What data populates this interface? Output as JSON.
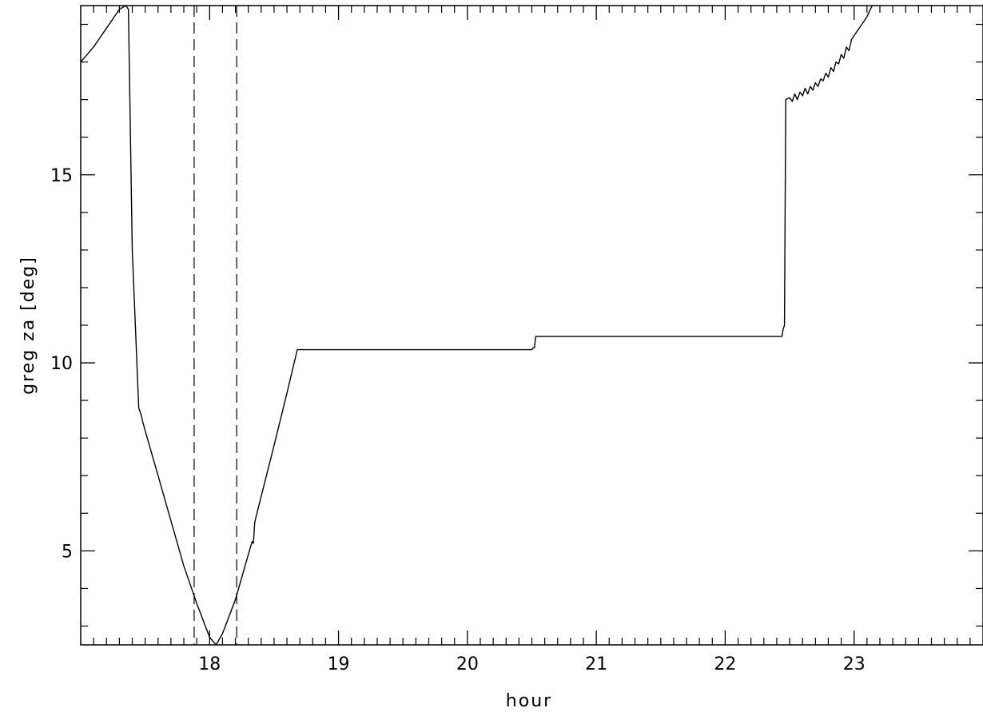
{
  "chart_data": {
    "type": "line",
    "title": "",
    "xlabel": "hour",
    "ylabel": "greg za [deg]",
    "xlim": [
      17.0,
      24.0
    ],
    "ylim": [
      2.5,
      19.5
    ],
    "grid": false,
    "x_major_ticks": [
      18,
      19,
      20,
      21,
      22,
      23
    ],
    "x_tick_labels": [
      "18",
      "19",
      "20",
      "21",
      "22",
      "23"
    ],
    "x_minor_step": 0.1,
    "y_major_ticks": [
      5,
      10,
      15
    ],
    "y_tick_labels": [
      "5",
      "10",
      "15"
    ],
    "y_minor_step": 1,
    "vertical_markers": [
      17.88,
      18.21
    ],
    "series": [
      {
        "x": [
          17.0,
          17.05,
          17.1,
          17.15,
          17.2,
          17.25,
          17.3,
          17.35,
          17.37,
          17.4,
          17.45,
          17.47,
          17.48,
          17.5,
          17.6,
          17.7,
          17.8,
          17.9,
          18.0,
          18.05,
          18.1,
          18.2,
          18.3,
          18.33,
          18.34,
          18.35,
          18.36,
          18.5,
          18.6,
          18.68,
          19.0,
          20.0,
          20.5,
          20.51,
          20.52,
          20.53,
          21.0,
          22.0,
          22.44,
          22.45,
          22.46,
          22.47,
          22.5,
          22.52,
          22.54,
          22.56,
          22.58,
          22.6,
          22.62,
          22.64,
          22.66,
          22.68,
          22.7,
          22.72,
          22.74,
          22.76,
          22.78,
          22.8,
          22.82,
          22.84,
          22.86,
          22.88,
          22.9,
          22.92,
          22.94,
          22.96,
          22.98,
          23.0,
          23.1,
          23.14
        ],
        "y": [
          18.0,
          18.2,
          18.4,
          18.65,
          18.9,
          19.15,
          19.4,
          19.7,
          19.4,
          13.0,
          8.8,
          8.6,
          8.45,
          8.2,
          7.0,
          5.8,
          4.6,
          3.6,
          2.7,
          2.5,
          2.8,
          3.7,
          4.9,
          5.25,
          5.2,
          5.75,
          5.9,
          7.8,
          9.2,
          10.35,
          10.35,
          10.35,
          10.35,
          10.4,
          10.4,
          10.7,
          10.7,
          10.7,
          10.7,
          10.9,
          11.0,
          17.0,
          17.05,
          16.95,
          17.15,
          17.0,
          17.2,
          17.1,
          17.3,
          17.15,
          17.35,
          17.25,
          17.45,
          17.35,
          17.55,
          17.5,
          17.7,
          17.6,
          17.85,
          17.75,
          18.0,
          17.95,
          18.2,
          18.1,
          18.4,
          18.3,
          18.6,
          18.7,
          19.2,
          19.5
        ]
      }
    ]
  }
}
